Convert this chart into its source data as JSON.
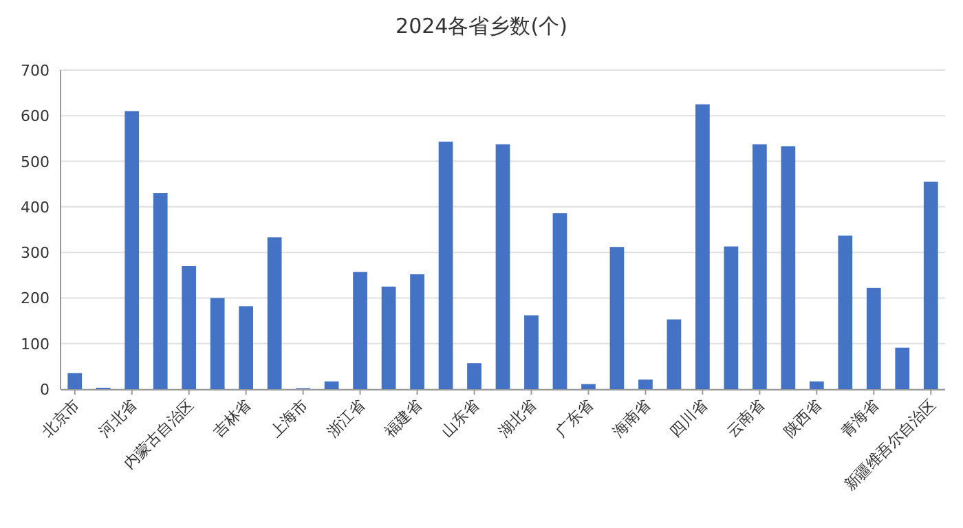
{
  "chart_data": {
    "type": "bar",
    "title": "2024各省乡数(个)",
    "categories": [
      "北京市",
      null,
      "河北省",
      null,
      "内蒙古自治区",
      null,
      "吉林省",
      null,
      "上海市",
      null,
      "浙江省",
      null,
      "福建省",
      null,
      "山东省",
      null,
      "湖北省",
      null,
      "广东省",
      null,
      "海南省",
      null,
      "四川省",
      null,
      "云南省",
      null,
      "陕西省",
      null,
      "青海省",
      null,
      "新疆维吾尔自治区"
    ],
    "values": [
      35,
      3,
      610,
      430,
      270,
      200,
      182,
      333,
      2,
      17,
      257,
      225,
      252,
      543,
      57,
      537,
      162,
      386,
      11,
      312,
      21,
      153,
      625,
      313,
      537,
      533,
      17,
      337,
      222,
      91,
      455
    ],
    "color": "#4472c4",
    "ylim": [
      0,
      700
    ],
    "yticks": [
      0,
      100,
      200,
      300,
      400,
      500,
      600,
      700
    ],
    "grid": "y"
  }
}
